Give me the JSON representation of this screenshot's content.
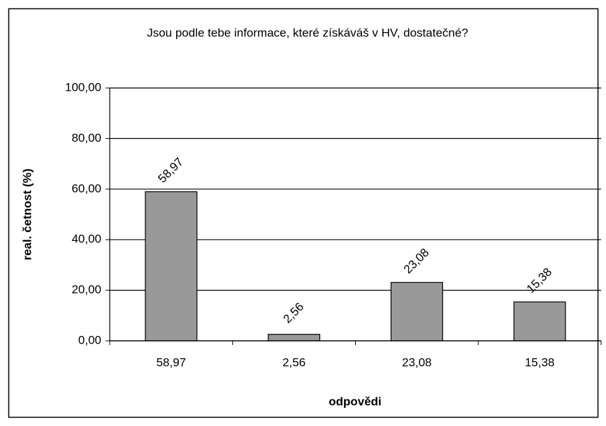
{
  "chart_data": {
    "type": "bar",
    "title": "Jsou podle tebe informace, které získáváš v HV, dostatečné?",
    "y_label": "real. četnost (%)",
    "x_label": "odpovědi",
    "categories": [
      "58,97",
      "2,56",
      "23,08",
      "15,38"
    ],
    "values": [
      58.97,
      2.56,
      23.08,
      15.38
    ],
    "value_labels": [
      "58,97",
      "2,56",
      "23,08",
      "15,38"
    ],
    "color": "#999999",
    "ylim": [
      0,
      100
    ],
    "yticks": [
      {
        "value": 0,
        "label": "0,00"
      },
      {
        "value": 20,
        "label": "20,00"
      },
      {
        "value": 40,
        "label": "40,00"
      },
      {
        "value": 60,
        "label": "60,00"
      },
      {
        "value": 80,
        "label": "80,00"
      },
      {
        "value": 100,
        "label": "100,00"
      }
    ],
    "grid": true
  }
}
